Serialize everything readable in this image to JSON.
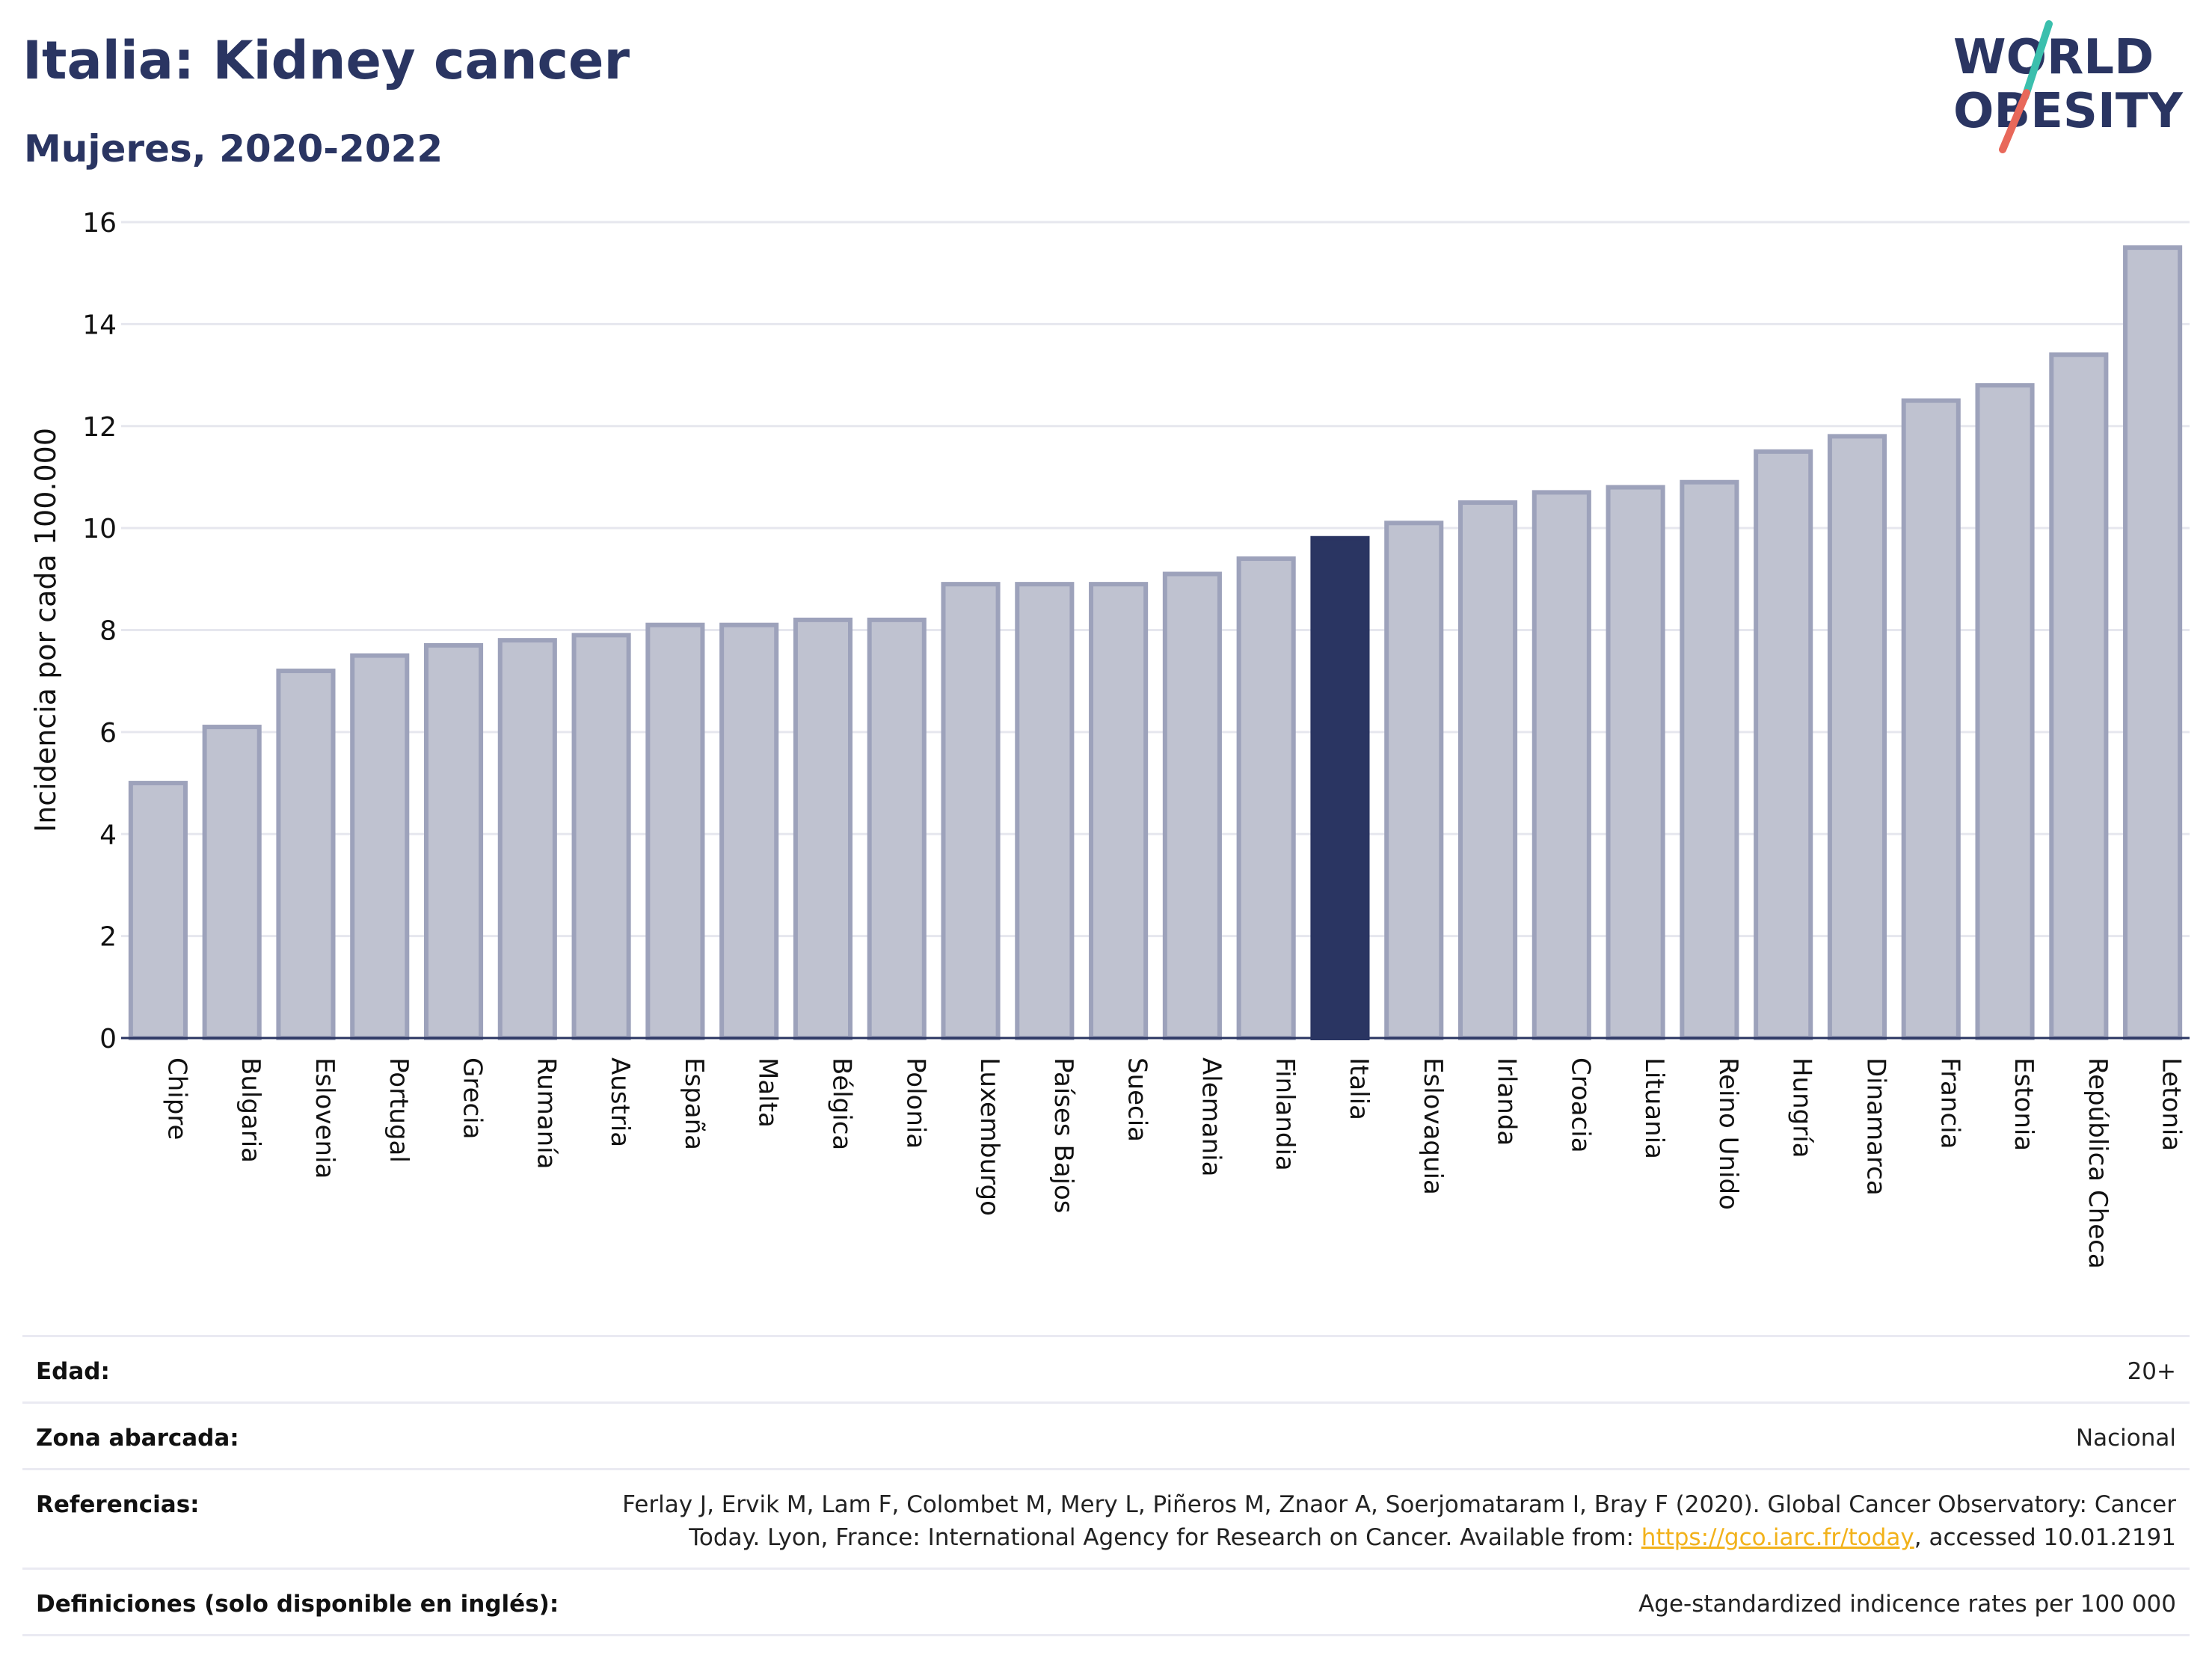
{
  "header": {
    "title": "Italia: Kidney cancer",
    "subtitle": "Mujeres, 2020-2022"
  },
  "logo": {
    "line1": "WORLD",
    "line2": "OBESITY",
    "slash_color_top": "#3bbfad",
    "slash_color_bottom": "#e8685a"
  },
  "colors": {
    "bar_default": "#bfc2d0",
    "bar_default_border": "#9da2bb",
    "bar_highlight": "#2a3562",
    "title": "#2a3562"
  },
  "chart_data": {
    "type": "bar",
    "title": "Italia: Kidney cancer",
    "subtitle": "Mujeres, 2020-2022",
    "xlabel": "",
    "ylabel": "Incidencia por cada 100.000",
    "ylim": [
      0,
      16
    ],
    "yticks": [
      0,
      2,
      4,
      6,
      8,
      10,
      12,
      14,
      16
    ],
    "grid": true,
    "highlight": "Italia",
    "categories": [
      "Chipre",
      "Bulgaria",
      "Eslovenia",
      "Portugal",
      "Grecia",
      "Rumanía",
      "Austria",
      "España",
      "Malta",
      "Bélgica",
      "Polonia",
      "Luxemburgo",
      "Países Bajos",
      "Suecia",
      "Alemania",
      "Finlandia",
      "Italia",
      "Eslovaquia",
      "Irlanda",
      "Croacia",
      "Lituania",
      "Reino Unido",
      "Hungría",
      "Dinamarca",
      "Francia",
      "Estonia",
      "República Checa",
      "Letonia"
    ],
    "values": [
      5.0,
      6.1,
      7.2,
      7.5,
      7.7,
      7.8,
      7.9,
      8.1,
      8.1,
      8.2,
      8.2,
      8.9,
      8.9,
      8.9,
      9.1,
      9.4,
      9.8,
      10.1,
      10.5,
      10.7,
      10.8,
      10.9,
      11.5,
      11.8,
      12.5,
      12.8,
      13.4,
      15.5
    ]
  },
  "footer": {
    "rows": [
      {
        "label": "Edad:",
        "value": "20+"
      },
      {
        "label": "Zona abarcada:",
        "value": "Nacional"
      },
      {
        "label": "Referencias:",
        "value_before_link": "Ferlay J, Ervik M, Lam F, Colombet M, Mery L, Piñeros M, Znaor A, Soerjomataram I, Bray F (2020). Global Cancer Observatory: Cancer Today. Lyon, France: International Agency for Research on Cancer. Available from: ",
        "link": "https://gco.iarc.fr/today",
        "value_after_link": ", accessed 10.01.2191"
      },
      {
        "label": "Definiciones (solo disponible en inglés):",
        "value": "Age-standardized indicence rates per 100 000"
      }
    ]
  }
}
